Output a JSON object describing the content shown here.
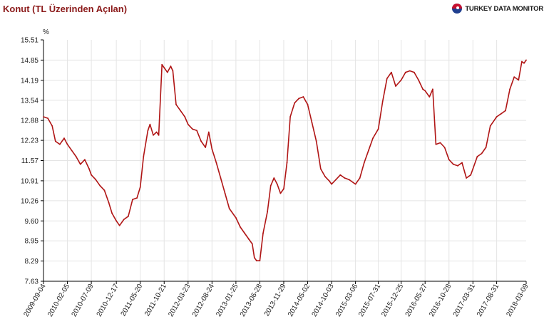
{
  "header": {
    "title": "Konut (TL Üzerinden Açılan)",
    "brand": "TURKEY DATA MONITOR",
    "brand_icon": "globe-logo-icon"
  },
  "colors": {
    "line": "#b01515",
    "axis": "#000000",
    "grid": "#e4e4e4",
    "title": "#8b1a1a"
  },
  "chart_data": {
    "type": "line",
    "title": "Konut (TL Üzerinden Açılan)",
    "ylabel": "%",
    "ylim": [
      7.63,
      15.51
    ],
    "xlim": [
      "2009-09-04",
      "2018-03-09"
    ],
    "grid": true,
    "y_ticks": [
      "15.51",
      "14.85",
      "14.19",
      "13.54",
      "12.88",
      "12.23",
      "11.57",
      "10.91",
      "10.26",
      "9.60",
      "8.95",
      "8.29",
      "7.63"
    ],
    "x_ticks": [
      "2009-09-04",
      "2010-02-05",
      "2010-07-09",
      "2010-12-17",
      "2011-05-20",
      "2011-10-21",
      "2012-03-23",
      "2012-08-24",
      "2013-01-25",
      "2013-06-28",
      "2013-11-29",
      "2014-05-02",
      "2014-10-03",
      "2015-03-06",
      "2015-07-31",
      "2015-12-25",
      "2016-05-27",
      "2016-10-28",
      "2017-03-31",
      "2017-08-31",
      "2018-03-09"
    ],
    "series": [
      {
        "color": "#b01515",
        "points": [
          [
            "2009-09-04",
            13.0
          ],
          [
            "2009-10-02",
            12.95
          ],
          [
            "2009-10-30",
            12.7
          ],
          [
            "2009-11-20",
            12.2
          ],
          [
            "2009-12-18",
            12.1
          ],
          [
            "2010-01-15",
            12.3
          ],
          [
            "2010-02-05",
            12.1
          ],
          [
            "2010-03-05",
            11.9
          ],
          [
            "2010-04-02",
            11.7
          ],
          [
            "2010-04-30",
            11.45
          ],
          [
            "2010-05-28",
            11.6
          ],
          [
            "2010-06-25",
            11.3
          ],
          [
            "2010-07-09",
            11.1
          ],
          [
            "2010-08-06",
            10.95
          ],
          [
            "2010-09-03",
            10.75
          ],
          [
            "2010-10-01",
            10.6
          ],
          [
            "2010-10-29",
            10.2
          ],
          [
            "2010-11-19",
            9.85
          ],
          [
            "2010-12-17",
            9.6
          ],
          [
            "2011-01-07",
            9.45
          ],
          [
            "2011-02-04",
            9.65
          ],
          [
            "2011-03-04",
            9.75
          ],
          [
            "2011-04-01",
            10.3
          ],
          [
            "2011-04-29",
            10.35
          ],
          [
            "2011-05-20",
            10.7
          ],
          [
            "2011-06-10",
            11.7
          ],
          [
            "2011-07-08",
            12.55
          ],
          [
            "2011-07-22",
            12.75
          ],
          [
            "2011-08-12",
            12.4
          ],
          [
            "2011-09-02",
            12.5
          ],
          [
            "2011-09-16",
            12.4
          ],
          [
            "2011-10-07",
            14.7
          ],
          [
            "2011-10-21",
            14.6
          ],
          [
            "2011-11-11",
            14.45
          ],
          [
            "2011-12-02",
            14.65
          ],
          [
            "2011-12-16",
            14.5
          ],
          [
            "2012-01-06",
            13.4
          ],
          [
            "2012-02-03",
            13.2
          ],
          [
            "2012-03-02",
            13.0
          ],
          [
            "2012-03-23",
            12.75
          ],
          [
            "2012-04-20",
            12.6
          ],
          [
            "2012-05-18",
            12.55
          ],
          [
            "2012-06-15",
            12.2
          ],
          [
            "2012-07-13",
            12.0
          ],
          [
            "2012-08-03",
            12.5
          ],
          [
            "2012-08-24",
            11.95
          ],
          [
            "2012-09-21",
            11.5
          ],
          [
            "2012-10-19",
            11.0
          ],
          [
            "2012-11-16",
            10.5
          ],
          [
            "2012-12-14",
            10.0
          ],
          [
            "2013-01-25",
            9.7
          ],
          [
            "2013-02-22",
            9.4
          ],
          [
            "2013-03-22",
            9.2
          ],
          [
            "2013-04-19",
            9.0
          ],
          [
            "2013-05-10",
            8.85
          ],
          [
            "2013-05-24",
            8.4
          ],
          [
            "2013-06-07",
            8.3
          ],
          [
            "2013-06-28",
            8.3
          ],
          [
            "2013-07-19",
            9.2
          ],
          [
            "2013-08-16",
            9.9
          ],
          [
            "2013-09-06",
            10.75
          ],
          [
            "2013-09-27",
            11.0
          ],
          [
            "2013-10-18",
            10.8
          ],
          [
            "2013-11-08",
            10.5
          ],
          [
            "2013-11-29",
            10.65
          ],
          [
            "2013-12-20",
            11.5
          ],
          [
            "2014-01-10",
            13.0
          ],
          [
            "2014-02-07",
            13.45
          ],
          [
            "2014-03-07",
            13.6
          ],
          [
            "2014-04-04",
            13.65
          ],
          [
            "2014-05-02",
            13.4
          ],
          [
            "2014-05-30",
            12.8
          ],
          [
            "2014-06-27",
            12.2
          ],
          [
            "2014-07-25",
            11.3
          ],
          [
            "2014-08-22",
            11.05
          ],
          [
            "2014-09-19",
            10.9
          ],
          [
            "2014-10-03",
            10.8
          ],
          [
            "2014-10-31",
            10.95
          ],
          [
            "2014-11-28",
            11.1
          ],
          [
            "2014-12-26",
            11.0
          ],
          [
            "2015-01-23",
            10.95
          ],
          [
            "2015-02-20",
            10.85
          ],
          [
            "2015-03-06",
            10.8
          ],
          [
            "2015-04-03",
            11.0
          ],
          [
            "2015-05-01",
            11.5
          ],
          [
            "2015-05-29",
            11.9
          ],
          [
            "2015-06-26",
            12.3
          ],
          [
            "2015-07-31",
            12.6
          ],
          [
            "2015-08-28",
            13.5
          ],
          [
            "2015-09-25",
            14.25
          ],
          [
            "2015-10-23",
            14.45
          ],
          [
            "2015-11-20",
            14.0
          ],
          [
            "2015-12-25",
            14.2
          ],
          [
            "2016-01-22",
            14.45
          ],
          [
            "2016-02-19",
            14.5
          ],
          [
            "2016-03-18",
            14.45
          ],
          [
            "2016-04-15",
            14.2
          ],
          [
            "2016-05-13",
            13.9
          ],
          [
            "2016-05-27",
            13.85
          ],
          [
            "2016-06-24",
            13.65
          ],
          [
            "2016-07-15",
            13.9
          ],
          [
            "2016-08-05",
            12.1
          ],
          [
            "2016-09-02",
            12.15
          ],
          [
            "2016-09-30",
            12.0
          ],
          [
            "2016-10-28",
            11.6
          ],
          [
            "2016-11-25",
            11.45
          ],
          [
            "2016-12-23",
            11.4
          ],
          [
            "2017-01-20",
            11.5
          ],
          [
            "2017-02-17",
            11.0
          ],
          [
            "2017-03-17",
            11.1
          ],
          [
            "2017-03-31",
            11.3
          ],
          [
            "2017-04-28",
            11.7
          ],
          [
            "2017-05-26",
            11.8
          ],
          [
            "2017-06-23",
            12.0
          ],
          [
            "2017-07-21",
            12.7
          ],
          [
            "2017-08-31",
            13.0
          ],
          [
            "2017-09-29",
            13.1
          ],
          [
            "2017-10-27",
            13.2
          ],
          [
            "2017-11-24",
            13.9
          ],
          [
            "2017-12-22",
            14.3
          ],
          [
            "2018-01-19",
            14.2
          ],
          [
            "2018-02-09",
            14.8
          ],
          [
            "2018-02-23",
            14.75
          ],
          [
            "2018-03-09",
            14.85
          ]
        ]
      }
    ]
  }
}
